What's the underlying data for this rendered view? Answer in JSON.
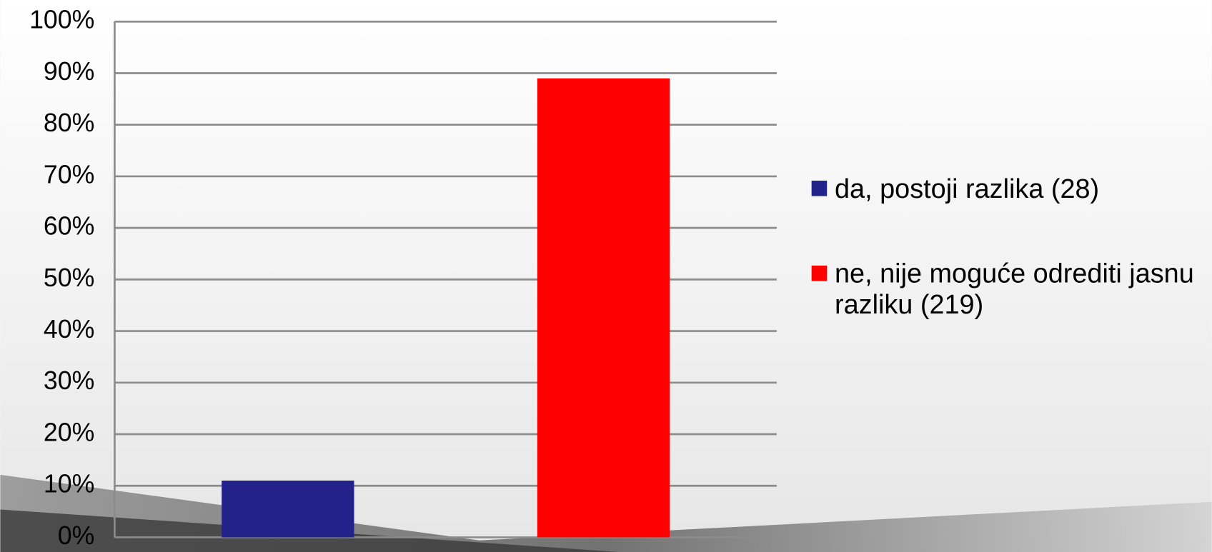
{
  "chart_data": {
    "type": "bar",
    "categories": [
      null
    ],
    "series": [
      {
        "name": "da, postoji razlika (28)",
        "color": "#22228a",
        "values": [
          11
        ]
      },
      {
        "name": "ne, nije moguće odrediti jasnu razliku (219)",
        "color": "#ff0000",
        "values": [
          89
        ]
      }
    ],
    "ylim": [
      0,
      100
    ],
    "yticks": [
      {
        "value": 0,
        "label": "0%"
      },
      {
        "value": 10,
        "label": "10%"
      },
      {
        "value": 20,
        "label": "20%"
      },
      {
        "value": 30,
        "label": "30%"
      },
      {
        "value": 40,
        "label": "40%"
      },
      {
        "value": 50,
        "label": "50%"
      },
      {
        "value": 60,
        "label": "60%"
      },
      {
        "value": 70,
        "label": "70%"
      },
      {
        "value": 80,
        "label": "80%"
      },
      {
        "value": 90,
        "label": "90%"
      },
      {
        "value": 100,
        "label": "100%"
      }
    ],
    "grid": true,
    "legend": "right"
  }
}
